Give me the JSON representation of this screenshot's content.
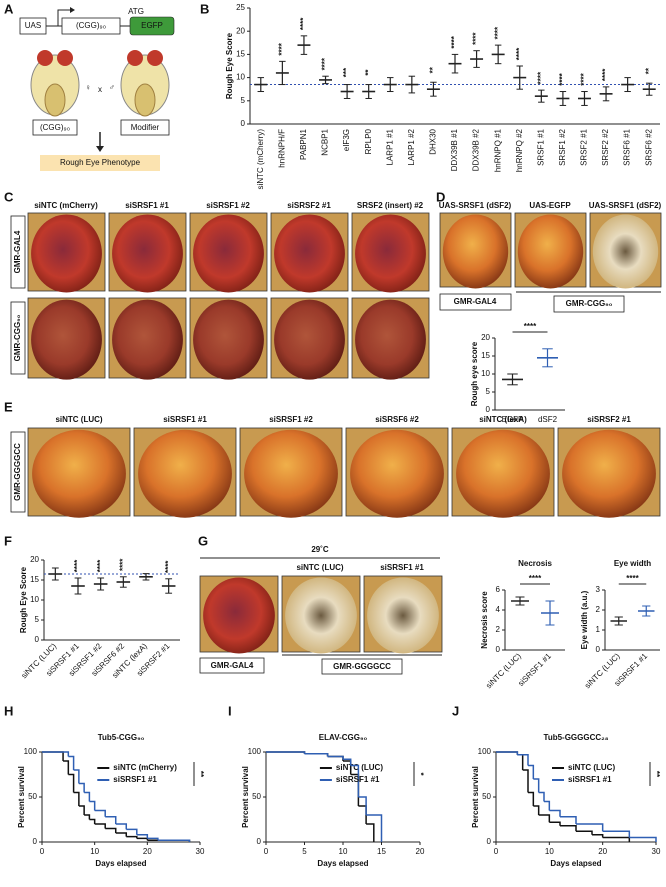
{
  "panel_labels": [
    "A",
    "B",
    "C",
    "D",
    "E",
    "F",
    "G",
    "H",
    "I",
    "J"
  ],
  "panel_a": {
    "uas": "UAS",
    "repeat": "(CGG)₉₀",
    "atg": "ATG",
    "egfp": "EGFP",
    "female": "♀",
    "cross": "x",
    "male": "♂",
    "left_label": "(CGG)₉₀",
    "right_label": "Modifier",
    "result": "Rough Eye Phenotype"
  },
  "panel_c": {
    "columns": [
      "siNTC (mCherry)",
      "siSRSF1 #1",
      "siSRSF1 #2",
      "siSRSF2 #1",
      "SRSF2 (insert) #2"
    ],
    "rows": [
      "GMR-GAL4",
      "GMR-CGG₉₀"
    ]
  },
  "panel_d": {
    "columns": [
      "UAS-SRSF1 (dSF2)",
      "UAS-EGFP",
      "UAS-SRSF1 (dSF2)"
    ],
    "left": "GMR-GAL4",
    "right": "GMR-CGG₉₀"
  },
  "panel_e": {
    "columns": [
      "siNTC (LUC)",
      "siSRSF1 #1",
      "siSRSF1 #2",
      "siSRSF6 #2",
      "siNTC (lexA)",
      "siSRSF2 #1"
    ],
    "row": "GMR-GGGGCC"
  },
  "panel_g": {
    "temperature": "29˚C",
    "columns": [
      "siNTC (LUC)",
      "siSRSF1 #1"
    ],
    "left": "GMR-GAL4",
    "right": "GMR-GGGGCC"
  },
  "chart_data": [
    {
      "type": "dot",
      "y_label": "Rough Eye Score",
      "categories": [
        "siNTC (mCherry)",
        "hnRNPH/F",
        "PABPN1",
        "NCBP1",
        "eIF3G",
        "RPLP0",
        "LARP1 #1",
        "LARP1 #2",
        "DHX30",
        "DDX39B #1",
        "DDX39B #2",
        "hnRNPQ #1",
        "hnRNPQ #2",
        "SRSF1 #1",
        "SRSF1 #2",
        "SRSF2 #1",
        "SRSF2 #2",
        "SRSF6 #1",
        "SRSF6 #2"
      ],
      "values": [
        8.5,
        11,
        17,
        9.5,
        7,
        7,
        8.5,
        8.5,
        7.5,
        13,
        14,
        15,
        10,
        6,
        5.5,
        5.5,
        6.5,
        8.5,
        7.5
      ],
      "errors": [
        1.5,
        2.5,
        2,
        0.8,
        1.5,
        1.5,
        1.5,
        1.8,
        1.5,
        2,
        1.8,
        2,
        2.5,
        1.3,
        1.5,
        1.5,
        1.5,
        1.5,
        1.3
      ],
      "stars": [
        null,
        "****",
        "****",
        "****",
        "***",
        "**",
        null,
        null,
        "**",
        "****",
        "****",
        "****",
        "****",
        "****",
        "****",
        "****",
        "****",
        null,
        "**"
      ],
      "colors": [
        "#222",
        "#222",
        "#222",
        "#222",
        "#222",
        "#222",
        "#222",
        "#222",
        "#222",
        "#222",
        "#222",
        "#222",
        "#222",
        "#222",
        "#222",
        "#222",
        "#222",
        "#222",
        "#222"
      ],
      "reference_line": 8.5,
      "ylim": [
        0,
        25
      ],
      "yticks": [
        0,
        5,
        10,
        15,
        20,
        25
      ]
    },
    {
      "type": "dot",
      "y_label": "Rough eye score",
      "categories": [
        "EGFP",
        "dSF2"
      ],
      "values": [
        8.5,
        14.5
      ],
      "errors": [
        1.5,
        2.5
      ],
      "colors": [
        "#222",
        "#2f5fb3"
      ],
      "bracket_label": "****",
      "ylim": [
        0,
        20
      ],
      "yticks": [
        0,
        5,
        10,
        15,
        20
      ]
    },
    {
      "type": "dot",
      "y_label": "Rough Eye Score",
      "categories": [
        "siNTC (LUC)",
        "siSRSF1 #1",
        "siSRSF1 #2",
        "siSRSF6 #2",
        "siNTC (lexA)",
        "siSRSF2 #1"
      ],
      "values": [
        16.5,
        13.5,
        14,
        14.5,
        15.8,
        13.5
      ],
      "errors": [
        1.5,
        2,
        1.5,
        1.3,
        0.8,
        1.8
      ],
      "stars": [
        null,
        "****",
        "****",
        "****",
        null,
        "****"
      ],
      "colors": [
        "#222",
        "#222",
        "#222",
        "#222",
        "#222",
        "#222"
      ],
      "reference_line": 16.5,
      "ylim": [
        0,
        20
      ],
      "yticks": [
        0,
        5,
        10,
        15,
        20
      ]
    },
    {
      "type": "dot",
      "title": "Necrosis",
      "y_label": "Necrosis score",
      "categories": [
        "siNTC (LUC)",
        "siSRSF1 #1"
      ],
      "values": [
        4.9,
        3.7
      ],
      "errors": [
        0.4,
        1.2
      ],
      "colors": [
        "#222",
        "#2f5fb3"
      ],
      "bracket_label": "****",
      "ylim": [
        0,
        6
      ],
      "yticks": [
        0,
        2,
        4,
        6
      ]
    },
    {
      "type": "dot",
      "title": "Eye width",
      "y_label": "Eye width (a.u.)",
      "categories": [
        "siNTC (LUC)",
        "siSRSF1 #1"
      ],
      "values": [
        1.45,
        1.95
      ],
      "errors": [
        0.2,
        0.25
      ],
      "colors": [
        "#222",
        "#2f5fb3"
      ],
      "bracket_label": "****",
      "ylim": [
        0,
        3
      ],
      "yticks": [
        0,
        1,
        2,
        3
      ]
    },
    {
      "type": "step",
      "title": "Tub5-CGG₉₀",
      "x_label": "Days elapsed",
      "y_label": "Percent survival",
      "significance": "**",
      "series": [
        {
          "name": "siNTC (mCherry)",
          "color": "#111",
          "x": [
            0,
            4,
            5,
            6,
            7,
            8,
            9,
            10,
            12,
            14,
            16,
            18,
            20,
            28
          ],
          "values": [
            100,
            90,
            75,
            55,
            40,
            30,
            25,
            20,
            15,
            10,
            6,
            4,
            2,
            0
          ]
        },
        {
          "name": "siSRSF1 #1",
          "color": "#2f5fb3",
          "x": [
            0,
            5,
            6,
            7,
            8,
            9,
            10,
            12,
            14,
            16,
            18,
            20,
            22,
            28
          ],
          "values": [
            100,
            95,
            80,
            65,
            55,
            45,
            35,
            28,
            20,
            14,
            8,
            4,
            2,
            0
          ]
        }
      ],
      "xlim": [
        0,
        30
      ],
      "xticks": [
        0,
        10,
        20,
        30
      ],
      "ylim": [
        0,
        100
      ],
      "yticks": [
        0,
        50,
        100
      ]
    },
    {
      "type": "step",
      "title": "ELAV-CGG₉₀",
      "x_label": "Days elapsed",
      "y_label": "Percent survival",
      "significance": "*",
      "series": [
        {
          "name": "siNTC (LUC)",
          "color": "#111",
          "x": [
            0,
            5,
            8,
            10,
            11,
            12,
            13,
            14
          ],
          "values": [
            100,
            98,
            95,
            90,
            75,
            40,
            20,
            0
          ]
        },
        {
          "name": "siSRSF1 #1",
          "color": "#2f5fb3",
          "x": [
            0,
            5,
            8,
            10,
            11,
            12,
            13,
            15
          ],
          "values": [
            100,
            98,
            95,
            92,
            85,
            50,
            30,
            0
          ]
        }
      ],
      "xlim": [
        0,
        20
      ],
      "xticks": [
        0,
        5,
        10,
        15,
        20
      ],
      "ylim": [
        0,
        100
      ],
      "yticks": [
        0,
        50,
        100
      ]
    },
    {
      "type": "step",
      "title": "Tub5-GGGGCC₂₈",
      "x_label": "Days elapsed",
      "y_label": "Percent survival",
      "significance": "**",
      "series": [
        {
          "name": "siNTC (LUC)",
          "color": "#111",
          "x": [
            0,
            4,
            5,
            6,
            7,
            8,
            10,
            12,
            15,
            18,
            20,
            25
          ],
          "values": [
            100,
            97,
            80,
            55,
            40,
            30,
            22,
            18,
            12,
            8,
            5,
            0
          ]
        },
        {
          "name": "siSRSF1 #1",
          "color": "#2f5fb3",
          "x": [
            0,
            4,
            6,
            7,
            8,
            9,
            10,
            12,
            15,
            20,
            25,
            30
          ],
          "values": [
            100,
            97,
            85,
            70,
            55,
            45,
            35,
            28,
            20,
            12,
            5,
            0
          ]
        }
      ],
      "xlim": [
        0,
        30
      ],
      "xticks": [
        0,
        10,
        20,
        30
      ],
      "ylim": [
        0,
        100
      ],
      "yticks": [
        0,
        50,
        100
      ]
    }
  ]
}
